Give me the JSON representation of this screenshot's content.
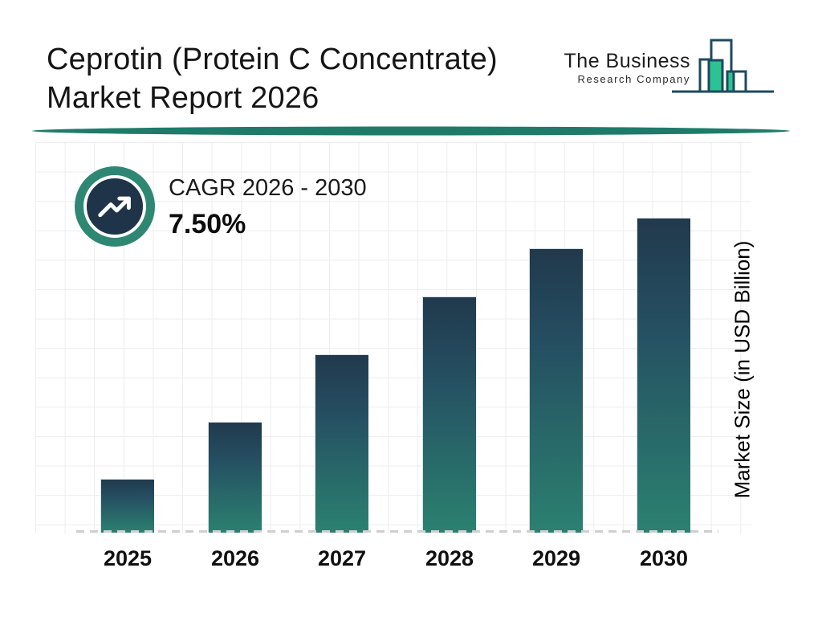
{
  "header": {
    "title_line1": "Ceprotin (Protein C Concentrate)",
    "title_line2": "Market Report 2026",
    "logo": {
      "name_line1": "The Business",
      "name_line2": "Research Company"
    }
  },
  "cagr": {
    "label": "CAGR 2026 - 2030",
    "value": "7.50%"
  },
  "chart_data": {
    "type": "bar",
    "title": "Ceprotin (Protein C Concentrate) Market Report 2026",
    "categories": [
      "2025",
      "2026",
      "2027",
      "2028",
      "2029",
      "2030"
    ],
    "values_pct_of_max": [
      16.9,
      35.0,
      56.5,
      74.9,
      90.3,
      100
    ],
    "value_labels_shown": false,
    "xlabel": "",
    "ylabel": "Market Size (in USD Billion)",
    "y_ticks_shown": false,
    "grid": true,
    "baseline_style": "dashed",
    "cagr_annotation": "CAGR 2026 - 2030 : 7.50%",
    "colors": {
      "bar_gradient_top": "#21394d",
      "bar_gradient_bottom": "#2b8170",
      "divider_teal": "#1e7b6a",
      "badge_ring": "#2e8773",
      "badge_fill": "#203449",
      "logo_outline": "#1d4a5f",
      "logo_green": "#2cc293",
      "grid_line": "#ededf1"
    }
  },
  "icons": {
    "badge_icon": "trending-up-icon",
    "logo_icon": "skyline-bars-icon"
  }
}
